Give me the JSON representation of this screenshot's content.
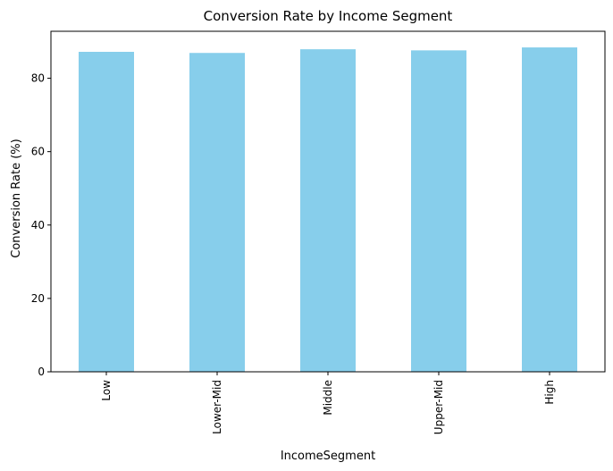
{
  "chart_data": {
    "type": "bar",
    "title": "Conversion Rate by Income Segment",
    "xlabel": "IncomeSegment",
    "ylabel": "Conversion Rate (%)",
    "categories": [
      "Low",
      "Lower-Mid",
      "Middle",
      "Upper-Mid",
      "High"
    ],
    "values": [
      87.2,
      86.9,
      87.9,
      87.6,
      88.4
    ],
    "ylim": [
      0,
      92.8
    ],
    "yticks": [
      0,
      20,
      40,
      60,
      80
    ],
    "grid": false,
    "legend": false,
    "colors": {
      "bar": "#87ceeb",
      "axis": "#000000"
    }
  }
}
